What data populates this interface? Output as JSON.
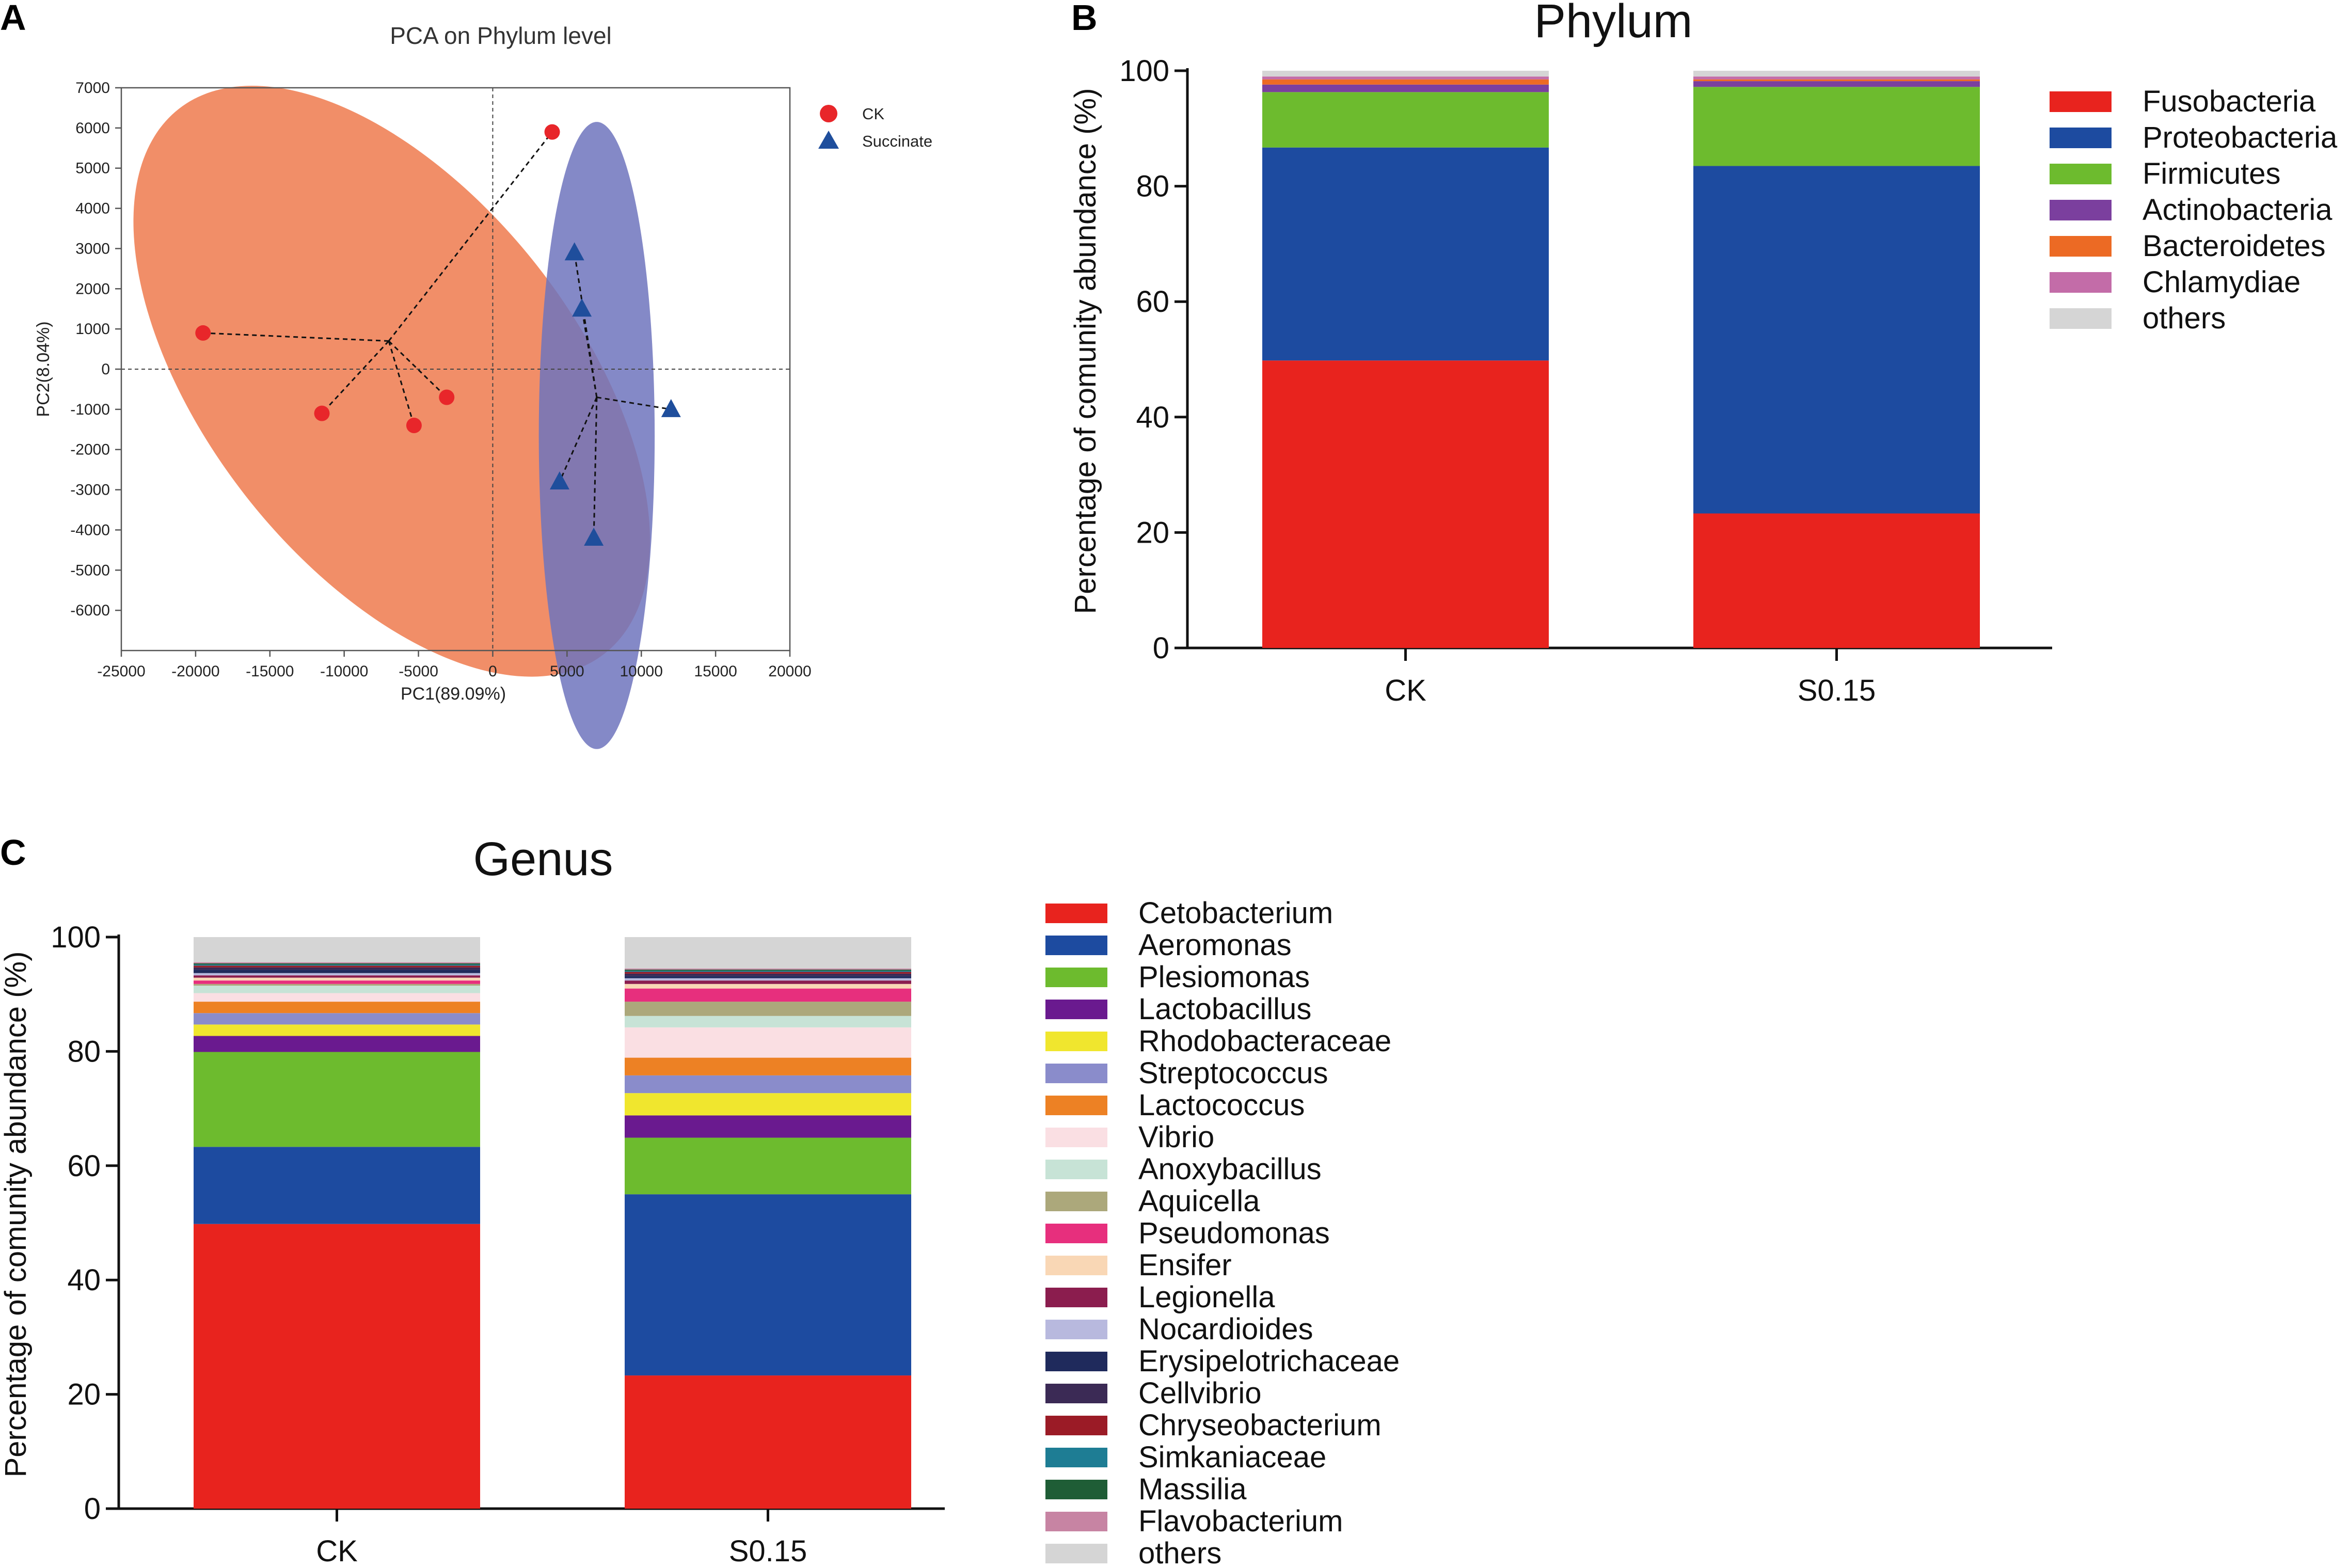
{
  "panels": {
    "a": {
      "letter": "A"
    },
    "b": {
      "letter": "B"
    },
    "c": {
      "letter": "C"
    }
  },
  "chart_data": [
    {
      "id": "pca",
      "type": "scatter",
      "title": "PCA on Phylum level",
      "xlabel": "PC1(89.09%)",
      "ylabel": "PC2(8.04%)",
      "xlim": [
        -25000,
        20000
      ],
      "ylim": [
        -7000,
        7000
      ],
      "xticks": [
        -25000,
        -20000,
        -15000,
        -10000,
        -5000,
        0,
        5000,
        10000,
        15000,
        20000
      ],
      "yticks": [
        7000,
        6000,
        5000,
        4000,
        3000,
        2000,
        1000,
        0,
        -1000,
        -2000,
        -3000,
        -4000,
        -5000,
        -6000
      ],
      "legend_position": "top-right",
      "series": [
        {
          "name": "CK",
          "marker": "circle",
          "color": "#e8262a",
          "ellipse_color": "#ee7a4e",
          "centroid": [
            -7000,
            700
          ],
          "ellipse": {
            "cx": -6800,
            "cy": -300,
            "rx": 12500,
            "ry": 8600,
            "rotation_deg": -38
          },
          "points": [
            {
              "x": 4000,
              "y": 5900
            },
            {
              "x": -19500,
              "y": 900
            },
            {
              "x": -11500,
              "y": -1100
            },
            {
              "x": -5300,
              "y": -1400
            },
            {
              "x": -3100,
              "y": -700
            }
          ]
        },
        {
          "name": "Succinate",
          "marker": "triangle",
          "color": "#1f4e9c",
          "ellipse_color": "#6e74bd",
          "centroid": [
            7000,
            -700
          ],
          "ellipse": {
            "cx": 7000,
            "cy": -1650,
            "rx": 3900,
            "ry": 7800,
            "rotation_deg": 0
          },
          "points": [
            {
              "x": 5500,
              "y": 2900
            },
            {
              "x": 6000,
              "y": 1500
            },
            {
              "x": 12000,
              "y": -1000
            },
            {
              "x": 4500,
              "y": -2800
            },
            {
              "x": 6800,
              "y": -4200
            }
          ]
        }
      ]
    },
    {
      "id": "phylum",
      "type": "bar",
      "stacked": true,
      "title": "Phylum",
      "xlabel": "",
      "ylabel": "Percentage of  comunity abundance (%)",
      "ylim": [
        0,
        100
      ],
      "yticks": [
        0,
        20,
        40,
        60,
        80,
        100
      ],
      "categories": [
        "CK",
        "S0.15"
      ],
      "legend_position": "right",
      "series": [
        {
          "name": "Fusobacteria",
          "color": "#e8231e",
          "values": [
            49.8,
            23.3
          ]
        },
        {
          "name": "Proteobacteria",
          "color": "#1d4ba0",
          "values": [
            36.9,
            60.2
          ]
        },
        {
          "name": "Firmicutes",
          "color": "#6dbb2e",
          "values": [
            9.6,
            13.7
          ]
        },
        {
          "name": "Actinobacteria",
          "color": "#7b3f9e",
          "values": [
            1.3,
            1.0
          ]
        },
        {
          "name": "Bacteroidetes",
          "color": "#ec6a24",
          "values": [
            0.9,
            0.3
          ]
        },
        {
          "name": "Chlamydiae",
          "color": "#c36ca8",
          "values": [
            0.5,
            0.5
          ]
        },
        {
          "name": "others",
          "color": "#d5d5d5",
          "values": [
            1.0,
            1.0
          ]
        }
      ]
    },
    {
      "id": "genus",
      "type": "bar",
      "stacked": true,
      "title": "Genus",
      "xlabel": "",
      "ylabel": "Percentage of  comunity abundance (%)",
      "ylim": [
        0,
        100
      ],
      "yticks": [
        0,
        20,
        40,
        60,
        80,
        100
      ],
      "categories": [
        "CK",
        "S0.15"
      ],
      "legend_position": "right",
      "series": [
        {
          "name": "Cetobacterium",
          "color": "#e8231e",
          "values": [
            49.8,
            23.3
          ]
        },
        {
          "name": "Aeromonas",
          "color": "#1d4ba0",
          "values": [
            13.5,
            31.7
          ]
        },
        {
          "name": "Plesiomonas",
          "color": "#6dbb2e",
          "values": [
            16.6,
            9.9
          ]
        },
        {
          "name": "Lactobacillus",
          "color": "#6a1a8f",
          "values": [
            2.8,
            3.9
          ]
        },
        {
          "name": "Rhodobacteraceae",
          "color": "#f0e62e",
          "values": [
            2.0,
            3.9
          ]
        },
        {
          "name": "Streptococcus",
          "color": "#8a8ccb",
          "values": [
            2.0,
            3.1
          ]
        },
        {
          "name": "Lactococcus",
          "color": "#ed8124",
          "values": [
            2.0,
            3.1
          ]
        },
        {
          "name": "Vibrio",
          "color": "#fadfe3",
          "values": [
            1.5,
            5.3
          ]
        },
        {
          "name": "Anoxybacillus",
          "color": "#c7e3d6",
          "values": [
            1.3,
            2.0
          ]
        },
        {
          "name": "Aquicella",
          "color": "#aca87b",
          "values": [
            0.3,
            2.5
          ]
        },
        {
          "name": "Pseudomonas",
          "color": "#e72f7d",
          "values": [
            0.6,
            2.3
          ]
        },
        {
          "name": "Ensifer",
          "color": "#f9d7b5",
          "values": [
            0.5,
            0.8
          ]
        },
        {
          "name": "Legionella",
          "color": "#8b1d4e",
          "values": [
            0.4,
            0.6
          ]
        },
        {
          "name": "Nocardioides",
          "color": "#b8b9de",
          "values": [
            0.4,
            0.4
          ]
        },
        {
          "name": "Erysipelotrichaceae",
          "color": "#1f2a5c",
          "values": [
            0.6,
            0.4
          ]
        },
        {
          "name": "Cellvibrio",
          "color": "#3b2a55",
          "values": [
            0.4,
            0.4
          ]
        },
        {
          "name": "Chryseobacterium",
          "color": "#9b1b26",
          "values": [
            0.3,
            0.3
          ]
        },
        {
          "name": "Simkaniaceae",
          "color": "#1e7d94",
          "values": [
            0.2,
            0.2
          ]
        },
        {
          "name": "Massilia",
          "color": "#1f5d36",
          "values": [
            0.2,
            0.2
          ]
        },
        {
          "name": "Flavobacterium",
          "color": "#c784a3",
          "values": [
            0.2,
            0.2
          ]
        },
        {
          "name": "others",
          "color": "#d5d5d5",
          "values": [
            4.4,
            5.5
          ]
        }
      ]
    }
  ]
}
